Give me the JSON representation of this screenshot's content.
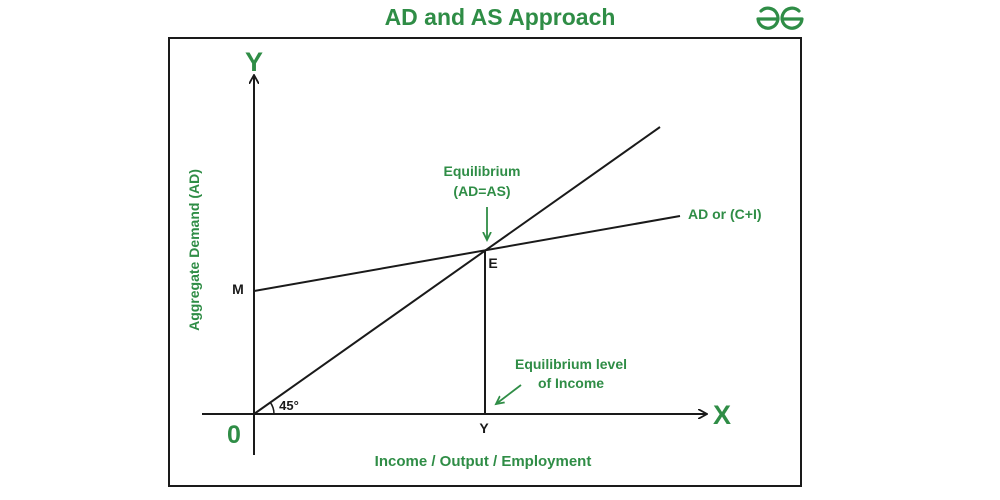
{
  "title": "AD and AS Approach",
  "logo": {
    "alt": "GfG logo",
    "icon": "geeksforgeeks-logo"
  },
  "axes": {
    "y_letter": "Y",
    "x_letter": "X",
    "origin": "0",
    "y_label": "Aggregate Demand (AD)",
    "x_label": "Income / Output / Employment"
  },
  "labels": {
    "m_point": "M",
    "e_point": "E",
    "y_point": "Y",
    "ad_line": "AD or (C+I)",
    "equilibrium_line1": "Equilibrium",
    "equilibrium_line2": "(AD=AS)",
    "income_line1": "Equilibrium level",
    "income_line2": "of Income",
    "angle": "45°"
  },
  "colors": {
    "accent": "#2f8d46",
    "ink": "#1a1a1a"
  }
}
